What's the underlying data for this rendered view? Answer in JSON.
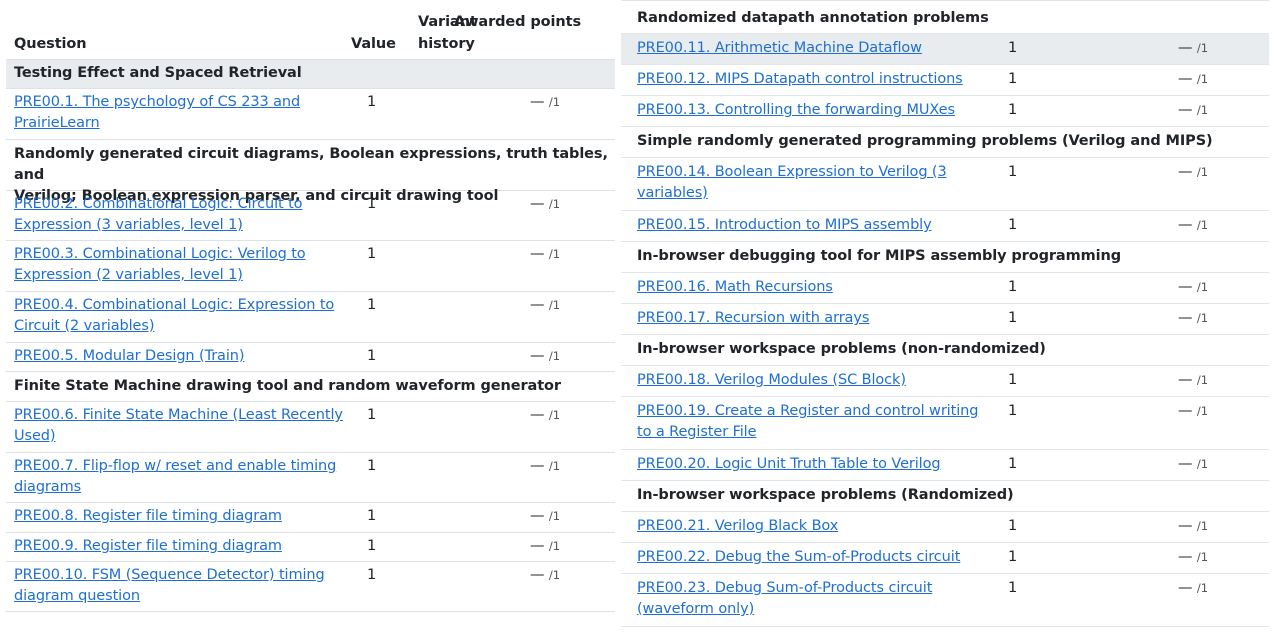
{
  "header": {
    "question": "Question",
    "value": "Value",
    "variant_history": "Variant history",
    "awarded_points": "Awarded points"
  },
  "points_dash": "—",
  "points_max": "/1",
  "left": {
    "g1": "Testing Effect and Spaced Retrieval",
    "q1a": "PRE00.1. The psychology of CS 233 and",
    "q1b": "PrairieLearn",
    "g2a": "Randomly generated circuit diagrams, Boolean expressions, truth tables, and",
    "g2b": "Verilog; Boolean expression parser, and circuit drawing tool",
    "q2a": "PRE00.2. Combinational Logic: Circuit to",
    "q2b": "Expression (3 variables, level 1)",
    "q3a": "PRE00.3. Combinational Logic: Verilog to",
    "q3b": "Expression (2 variables, level 1)",
    "q4a": "PRE00.4. Combinational Logic: Expression to",
    "q4b": "Circuit (2 variables)",
    "q5": "PRE00.5. Modular Design (Train)",
    "g3": "Finite State Machine drawing tool and random waveform generator",
    "q6a": "PRE00.6. Finite State Machine (Least Recently",
    "q6b": "Used)",
    "q7a": "PRE00.7. Flip-flop w/ reset and enable timing",
    "q7b": "diagrams",
    "q8": "PRE00.8. Register file timing diagram",
    "q9": "PRE00.9. Register file timing diagram",
    "q10a": "PRE00.10. FSM (Sequence Detector) timing",
    "q10b": "diagram question"
  },
  "right": {
    "g1": "Randomized datapath annotation problems",
    "q11": "PRE00.11. Arithmetic Machine Dataflow",
    "q12": "PRE00.12. MIPS Datapath control instructions",
    "q13": "PRE00.13. Controlling the forwarding MUXes",
    "g2": "Simple randomly generated programming problems (Verilog and MIPS)",
    "q14a": "PRE00.14. Boolean Expression to Verilog (3",
    "q14b": "variables)",
    "q15": "PRE00.15. Introduction to MIPS assembly",
    "g3": "In-browser debugging tool for MIPS assembly programming",
    "q16": "PRE00.16. Math Recursions",
    "q17": "PRE00.17. Recursion with arrays",
    "g4": "In-browser workspace problems (non-randomized)",
    "q18": "PRE00.18. Verilog Modules (SC Block)",
    "q19a": "PRE00.19. Create a Register and control writing",
    "q19b": "to a Register File",
    "q20": "PRE00.20. Logic Unit Truth Table to Verilog",
    "g5": "In-browser workspace problems (Randomized)",
    "q21": "PRE00.21. Verilog Black Box",
    "q22": "PRE00.22. Debug the Sum-of-Products circuit",
    "q23a": "PRE00.23. Debug Sum-of-Products circuit",
    "q23b": "(waveform only)"
  },
  "question_value": "1"
}
